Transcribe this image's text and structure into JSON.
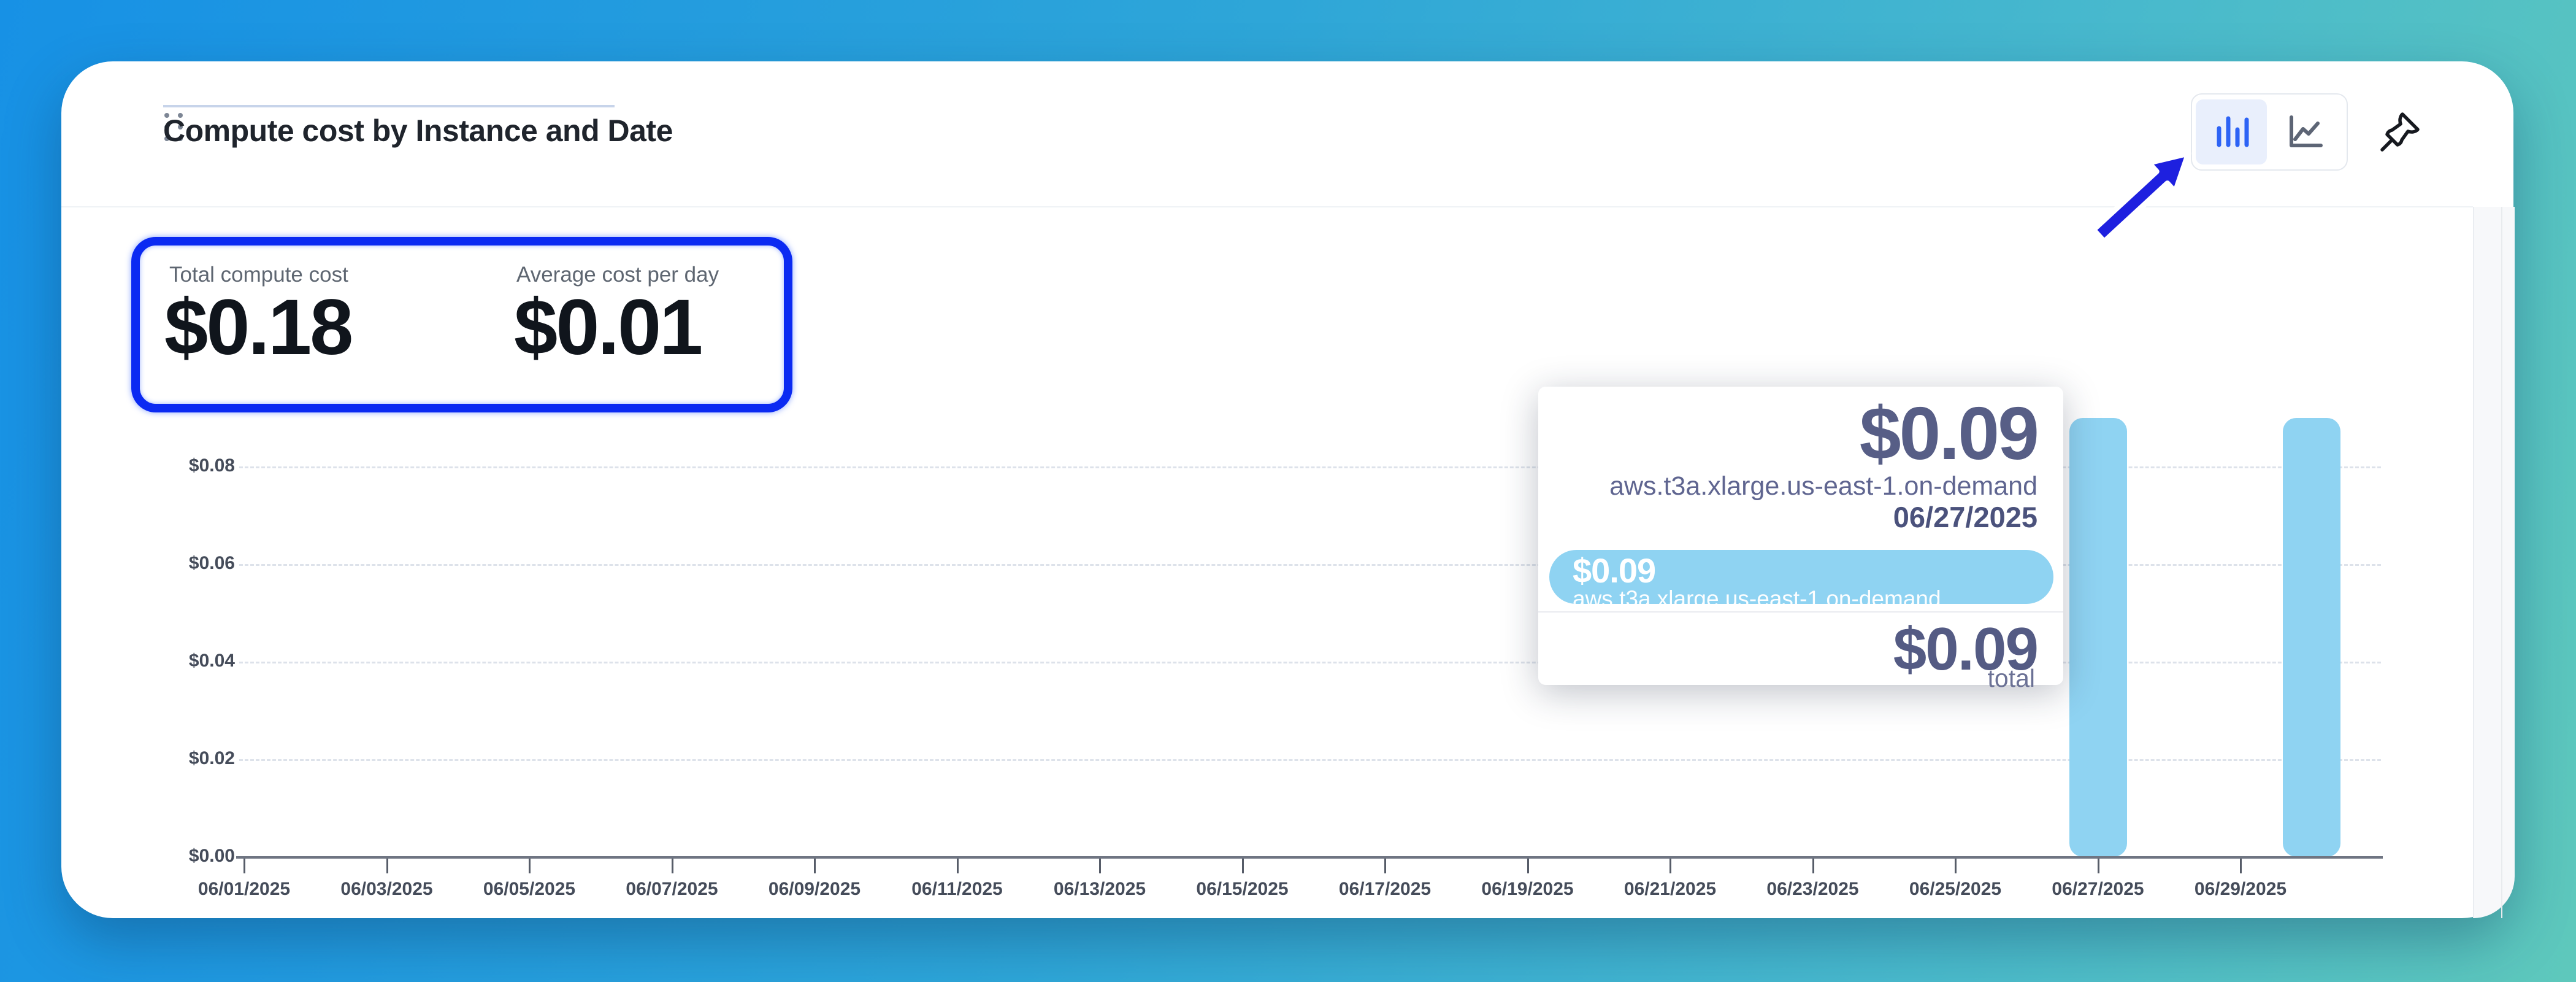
{
  "widget": {
    "title": "Compute cost by Instance and Date",
    "stats": [
      {
        "label": "Total compute cost",
        "value": "$0.18"
      },
      {
        "label": "Average cost per day",
        "value": "$0.01"
      }
    ],
    "toolbar": {
      "chart_type_toggle": [
        {
          "id": "bar",
          "icon": "bar-chart-icon",
          "active": true
        },
        {
          "id": "line",
          "icon": "line-chart-icon",
          "active": false
        }
      ],
      "pin_icon": "pushpin-icon"
    }
  },
  "tooltip": {
    "value": "$0.09",
    "instance": "aws.t3a.xlarge.us-east-1.on-demand",
    "date": "06/27/2025",
    "series_row": {
      "value": "$0.09",
      "instance": "aws.t3a.xlarge.us-east-1.on-demand"
    },
    "total_value": "$0.09",
    "total_label": "total"
  },
  "chart_data": {
    "type": "bar",
    "title": "Compute cost by Instance and Date",
    "series": [
      {
        "name": "aws.t3a.xlarge.us-east-1.on-demand",
        "points": [
          {
            "date": "06/27/2025",
            "value": 0.09
          },
          {
            "date": "06/30/2025",
            "value": 0.09
          }
        ]
      }
    ],
    "x_days": 30,
    "x_start": "06/01/2025",
    "x_tick_labels": [
      "06/01/2025",
      "06/03/2025",
      "06/05/2025",
      "06/07/2025",
      "06/09/2025",
      "06/11/2025",
      "06/13/2025",
      "06/15/2025",
      "06/17/2025",
      "06/19/2025",
      "06/21/2025",
      "06/23/2025",
      "06/25/2025",
      "06/27/2025",
      "06/29/2025"
    ],
    "y_ticks": [
      0.0,
      0.02,
      0.04,
      0.06,
      0.08
    ],
    "y_tick_labels": [
      "$0.00",
      "$0.02",
      "$0.04",
      "$0.06",
      "$0.08"
    ],
    "ylim": [
      0,
      0.09
    ],
    "grid": "horizontal-dashed",
    "legend": "none",
    "bar_color": "#8fd3f2"
  },
  "colors": {
    "background_gradient_start": "#1791e5",
    "background_gradient_end": "#5ec8bc",
    "card": "#ffffff",
    "bar": "#8fd3f2",
    "annotation_blue": "#0b2af2",
    "arrow_blue": "#1e20df",
    "active_toggle_bg": "#e9effc",
    "toggle_icon_blue": "#2d63f5",
    "tooltip_text": "#575e86"
  }
}
